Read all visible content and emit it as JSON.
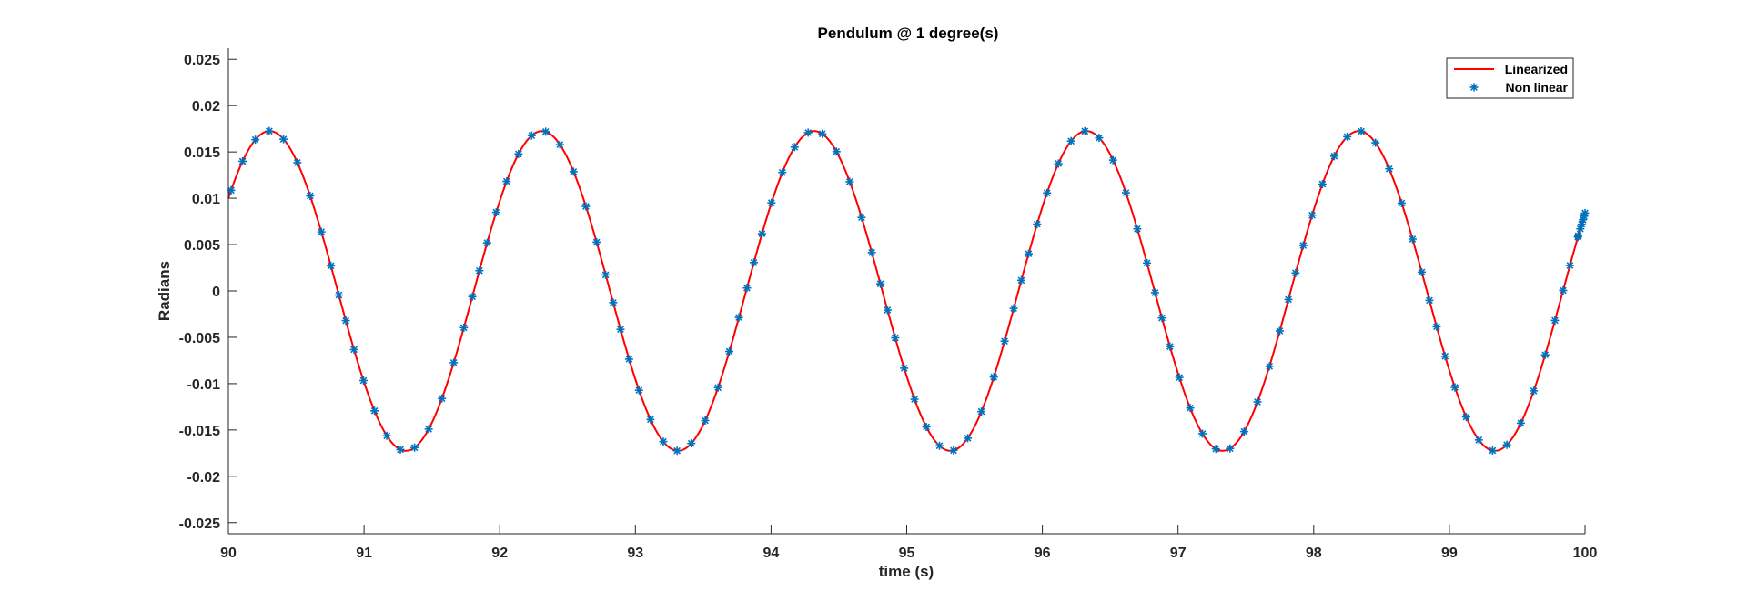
{
  "chart_data": {
    "type": "line",
    "title": "Pendulum @ 1 degree(s)",
    "xlabel": "time (s)",
    "ylabel": "Radians",
    "xlim": [
      90,
      100
    ],
    "ylim": [
      -0.0262,
      0.0262
    ],
    "x_ticks": [
      90,
      91,
      92,
      93,
      94,
      95,
      96,
      97,
      98,
      99,
      100
    ],
    "x_tick_labels": [
      "90",
      "91",
      "92",
      "93",
      "94",
      "95",
      "96",
      "97",
      "98",
      "99",
      "100"
    ],
    "y_ticks": [
      0.025,
      0.02,
      0.015,
      0.01,
      0.005,
      0,
      -0.005,
      -0.01,
      -0.015,
      -0.02,
      -0.025
    ],
    "y_tick_labels": [
      "0.025",
      "0.02",
      "0.015",
      "0.01",
      "0.005",
      "0",
      "-0.005",
      "-0.01",
      "-0.015",
      "-0.02",
      "-0.025"
    ],
    "grid": false,
    "legend": "top-right",
    "series": [
      {
        "name": "Linearized",
        "style": "line",
        "color": "#ff0000",
        "model": "sinusoid",
        "amplitude": 0.01725,
        "period_s": 2.007,
        "phase_rad": 0.618
      },
      {
        "name": "Non linear",
        "style": "marker",
        "marker": "asterisk",
        "color": "#0072bd",
        "model": "sinusoid",
        "amplitude": 0.01725,
        "period_s": 2.007,
        "phase_rad": 0.618
      }
    ]
  }
}
